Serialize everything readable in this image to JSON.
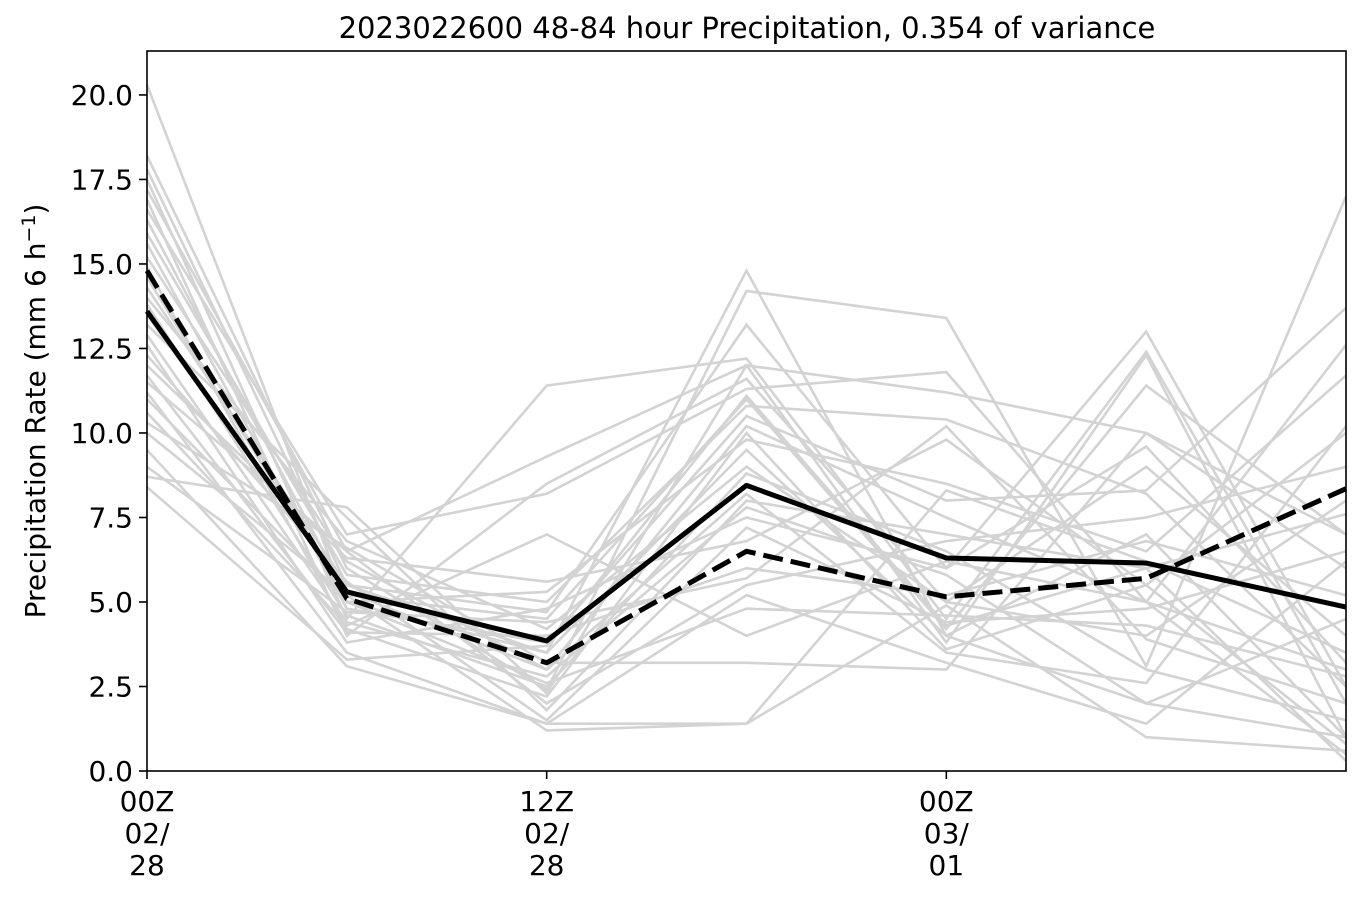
{
  "chart_data": {
    "type": "line",
    "title": "2023022600 48-84 hour Precipitation, 0.354 of variance",
    "ylabel_main": "Precipitation Rate (mm 6 h",
    "ylabel_sup": "−1",
    "ylabel_close": ")",
    "xlim": [
      0,
      6
    ],
    "ylim": [
      0,
      21.3
    ],
    "yticks": [
      {
        "value": 0,
        "label": "0.0"
      },
      {
        "value": 2.5,
        "label": "2.5"
      },
      {
        "value": 5,
        "label": "5.0"
      },
      {
        "value": 7.5,
        "label": "7.5"
      },
      {
        "value": 10,
        "label": "10.0"
      },
      {
        "value": 12.5,
        "label": "12.5"
      },
      {
        "value": 15,
        "label": "15.0"
      },
      {
        "value": 17.5,
        "label": "17.5"
      },
      {
        "value": 20,
        "label": "20.0"
      }
    ],
    "xticks": [
      {
        "value": 0,
        "lines": [
          "00Z",
          "02/",
          "28"
        ]
      },
      {
        "value": 2,
        "lines": [
          "12Z",
          "02/",
          "28"
        ]
      },
      {
        "value": 4,
        "lines": [
          "00Z",
          "03/",
          "01"
        ]
      }
    ],
    "ensemble_color": "#d3d3d3",
    "ensemble": [
      [
        20.3,
        5.0,
        3.5,
        14.8,
        4.0,
        2.0,
        1.0
      ],
      [
        18.2,
        6.0,
        2.4,
        14.2,
        13.4,
        3.1,
        17.0
      ],
      [
        17.8,
        5.5,
        4.7,
        13.2,
        6.0,
        13.0,
        2.5
      ],
      [
        17.5,
        4.5,
        11.4,
        12.2,
        4.5,
        12.4,
        2.0
      ],
      [
        17.2,
        6.5,
        9.3,
        12.0,
        11.2,
        10.0,
        6.0
      ],
      [
        16.9,
        4.0,
        8.5,
        11.6,
        5.0,
        9.0,
        4.0
      ],
      [
        16.6,
        7.0,
        8.2,
        11.3,
        11.8,
        5.0,
        3.0
      ],
      [
        16.3,
        5.2,
        4.5,
        11.0,
        4.2,
        11.4,
        7.0
      ],
      [
        15.9,
        5.8,
        5.0,
        10.8,
        10.4,
        8.2,
        2.5
      ],
      [
        15.6,
        4.8,
        3.8,
        10.5,
        8.0,
        8.3,
        13.7
      ],
      [
        15.2,
        6.2,
        3.0,
        10.2,
        7.5,
        5.0,
        12.6
      ],
      [
        14.9,
        4.2,
        2.2,
        10.0,
        3.6,
        5.5,
        10.0
      ],
      [
        14.6,
        5.0,
        5.3,
        9.8,
        8.5,
        6.5,
        11.7
      ],
      [
        14.3,
        5.5,
        3.5,
        9.5,
        4.0,
        7.0,
        1.0
      ],
      [
        14.0,
        6.8,
        4.2,
        9.0,
        5.0,
        4.0,
        8.0
      ],
      [
        13.8,
        4.6,
        2.5,
        8.8,
        6.5,
        3.0,
        1.5
      ],
      [
        13.5,
        5.3,
        3.0,
        8.2,
        3.5,
        2.6,
        10.2
      ],
      [
        13.2,
        7.5,
        1.8,
        8.0,
        7.0,
        6.0,
        7.6
      ],
      [
        12.9,
        4.4,
        2.8,
        7.8,
        5.8,
        2.0,
        4.5
      ],
      [
        12.6,
        3.8,
        4.8,
        7.5,
        6.0,
        9.6,
        3.2
      ],
      [
        12.3,
        5.6,
        1.5,
        7.2,
        4.4,
        4.8,
        6.5
      ],
      [
        12.0,
        6.3,
        5.6,
        6.8,
        9.8,
        5.5,
        0.8
      ],
      [
        11.7,
        4.1,
        4.0,
        6.0,
        5.2,
        6.8,
        5.2
      ],
      [
        11.5,
        6.5,
        2.0,
        5.5,
        6.8,
        7.5,
        9.0
      ],
      [
        11.2,
        3.5,
        1.4,
        5.2,
        3.2,
        1.4,
        6.2
      ],
      [
        11.0,
        5.0,
        2.6,
        4.8,
        4.6,
        4.3,
        2.8
      ],
      [
        10.6,
        4.3,
        7.0,
        4.0,
        6.2,
        5.0,
        0.5
      ],
      [
        10.3,
        6.6,
        3.2,
        3.2,
        3.0,
        10.0,
        7.0
      ],
      [
        10.0,
        5.2,
        1.2,
        1.4,
        8.3,
        6.2,
        3.5
      ],
      [
        9.5,
        3.1,
        1.4,
        1.4,
        4.9,
        1.0,
        0.6
      ],
      [
        9.0,
        4.7,
        4.4,
        5.7,
        10.2,
        3.9,
        2.0
      ],
      [
        8.7,
        7.8,
        2.3,
        12.0,
        3.8,
        12.3,
        1.0
      ],
      [
        8.4,
        3.3,
        3.7,
        11.1,
        4.3,
        6.0,
        0.3
      ]
    ],
    "series": [
      {
        "style": "solid",
        "color": "#000000",
        "values": [
          13.6,
          5.3,
          3.85,
          8.45,
          6.3,
          6.15,
          4.85
        ]
      },
      {
        "style": "dashed",
        "color": "#000000",
        "values": [
          14.8,
          5.1,
          3.2,
          6.5,
          5.15,
          5.7,
          8.35
        ]
      }
    ]
  }
}
